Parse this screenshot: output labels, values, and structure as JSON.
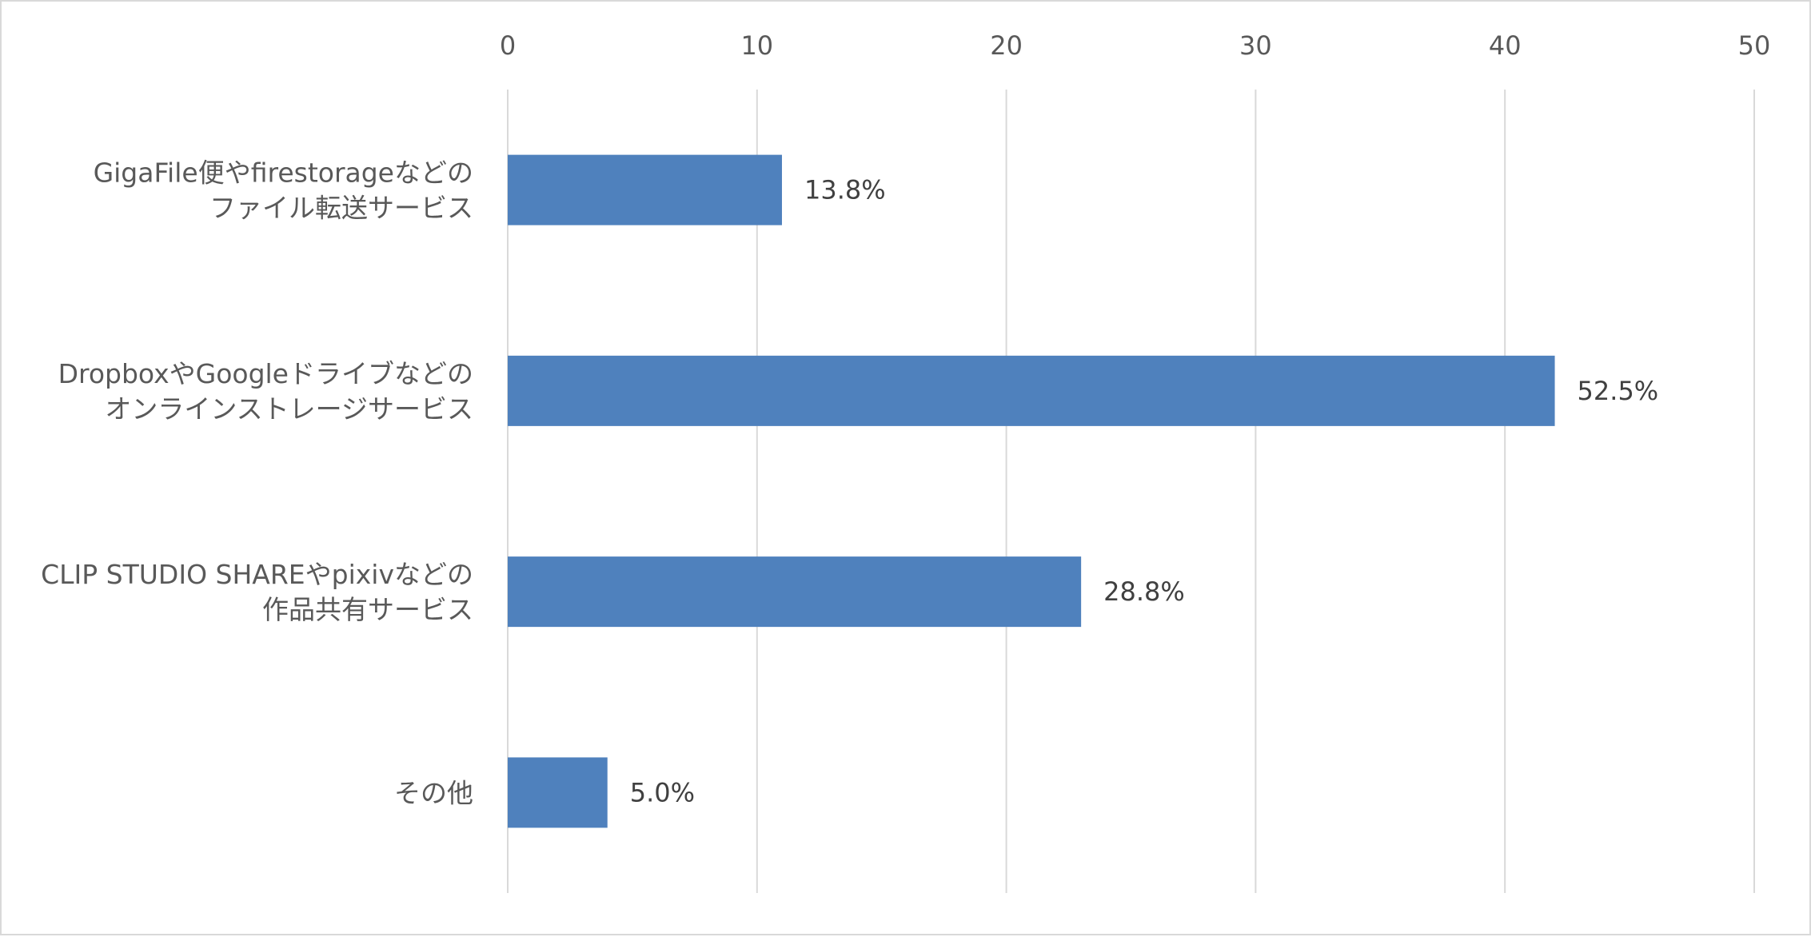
{
  "chart_data": {
    "type": "bar",
    "orientation": "horizontal",
    "categories": [
      [
        "GigaFile便やfirestorageなどの",
        "ファイル転送サービス"
      ],
      [
        "DropboxやGoogleドライブなどの",
        "オンラインストレージサービス"
      ],
      [
        "CLIP STUDIO SHAREやpixivなどの",
        "作品共有サービス"
      ],
      [
        "その他"
      ]
    ],
    "values": [
      11,
      42,
      23,
      4
    ],
    "data_labels": [
      "13.8%",
      "52.5%",
      "28.8%",
      "5.0%"
    ],
    "xlim": [
      0,
      50
    ],
    "ticks": [
      0,
      10,
      20,
      30,
      40,
      50
    ],
    "tick_labels": [
      "0",
      "10",
      "20",
      "30",
      "40",
      "50"
    ],
    "axis_position": "top",
    "grid": true,
    "legend": "none",
    "bar_color": "#4F81BD"
  }
}
